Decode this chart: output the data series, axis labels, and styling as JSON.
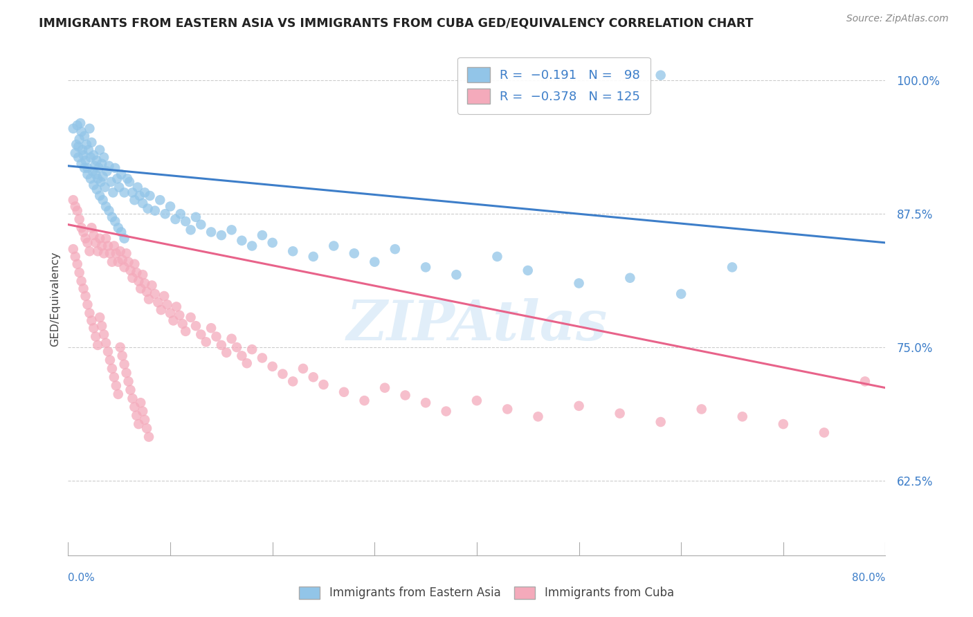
{
  "title": "IMMIGRANTS FROM EASTERN ASIA VS IMMIGRANTS FROM CUBA GED/EQUIVALENCY CORRELATION CHART",
  "source": "Source: ZipAtlas.com",
  "ylabel": "GED/Equivalency",
  "yticks_labels": [
    "62.5%",
    "75.0%",
    "87.5%",
    "100.0%"
  ],
  "ytick_vals": [
    0.625,
    0.75,
    0.875,
    1.0
  ],
  "xticks_labels": [
    "0.0%",
    "80.0%"
  ],
  "xlim": [
    0.0,
    0.8
  ],
  "ylim": [
    0.555,
    1.035
  ],
  "blue_color": "#92C5E8",
  "pink_color": "#F4AABB",
  "blue_line_color": "#3D7EC9",
  "pink_line_color": "#E8638A",
  "blue_trend_x0": 0.0,
  "blue_trend_y0": 0.92,
  "blue_trend_x1": 0.8,
  "blue_trend_y1": 0.848,
  "pink_trend_x0": 0.0,
  "pink_trend_y0": 0.865,
  "pink_trend_x1": 0.8,
  "pink_trend_y1": 0.712,
  "blue_x": [
    0.005,
    0.008,
    0.009,
    0.01,
    0.011,
    0.012,
    0.013,
    0.014,
    0.015,
    0.016,
    0.017,
    0.018,
    0.019,
    0.02,
    0.021,
    0.022,
    0.023,
    0.024,
    0.025,
    0.026,
    0.027,
    0.028,
    0.029,
    0.03,
    0.031,
    0.032,
    0.033,
    0.034,
    0.035,
    0.036,
    0.038,
    0.04,
    0.042,
    0.044,
    0.046,
    0.048,
    0.05,
    0.052,
    0.055,
    0.058,
    0.06,
    0.063,
    0.065,
    0.068,
    0.07,
    0.073,
    0.075,
    0.078,
    0.08,
    0.085,
    0.09,
    0.095,
    0.1,
    0.105,
    0.11,
    0.115,
    0.12,
    0.125,
    0.13,
    0.14,
    0.15,
    0.16,
    0.17,
    0.18,
    0.19,
    0.2,
    0.22,
    0.24,
    0.26,
    0.28,
    0.3,
    0.32,
    0.35,
    0.38,
    0.42,
    0.45,
    0.5,
    0.55,
    0.6,
    0.65,
    0.007,
    0.01,
    0.013,
    0.016,
    0.019,
    0.022,
    0.025,
    0.028,
    0.031,
    0.034,
    0.037,
    0.04,
    0.043,
    0.046,
    0.049,
    0.052,
    0.055,
    0.58
  ],
  "blue_y": [
    0.955,
    0.94,
    0.958,
    0.938,
    0.945,
    0.96,
    0.952,
    0.935,
    0.93,
    0.948,
    0.925,
    0.94,
    0.918,
    0.935,
    0.955,
    0.928,
    0.942,
    0.915,
    0.93,
    0.92,
    0.912,
    0.925,
    0.908,
    0.918,
    0.935,
    0.905,
    0.922,
    0.91,
    0.928,
    0.9,
    0.915,
    0.92,
    0.905,
    0.895,
    0.918,
    0.908,
    0.9,
    0.912,
    0.895,
    0.908,
    0.905,
    0.895,
    0.888,
    0.9,
    0.892,
    0.885,
    0.895,
    0.88,
    0.892,
    0.878,
    0.888,
    0.875,
    0.882,
    0.87,
    0.875,
    0.868,
    0.86,
    0.872,
    0.865,
    0.858,
    0.855,
    0.86,
    0.85,
    0.845,
    0.855,
    0.848,
    0.84,
    0.835,
    0.845,
    0.838,
    0.83,
    0.842,
    0.825,
    0.818,
    0.835,
    0.822,
    0.81,
    0.815,
    0.8,
    0.825,
    0.932,
    0.928,
    0.922,
    0.918,
    0.912,
    0.908,
    0.902,
    0.898,
    0.892,
    0.888,
    0.882,
    0.878,
    0.872,
    0.868,
    0.862,
    0.858,
    0.852,
    1.005
  ],
  "pink_x": [
    0.005,
    0.007,
    0.009,
    0.011,
    0.013,
    0.015,
    0.017,
    0.019,
    0.021,
    0.023,
    0.025,
    0.027,
    0.029,
    0.031,
    0.033,
    0.035,
    0.037,
    0.039,
    0.041,
    0.043,
    0.045,
    0.047,
    0.049,
    0.051,
    0.053,
    0.055,
    0.057,
    0.059,
    0.061,
    0.063,
    0.065,
    0.067,
    0.069,
    0.071,
    0.073,
    0.075,
    0.077,
    0.079,
    0.082,
    0.085,
    0.088,
    0.091,
    0.094,
    0.097,
    0.1,
    0.103,
    0.106,
    0.109,
    0.112,
    0.115,
    0.12,
    0.125,
    0.13,
    0.135,
    0.14,
    0.145,
    0.15,
    0.155,
    0.16,
    0.165,
    0.17,
    0.175,
    0.18,
    0.19,
    0.2,
    0.21,
    0.22,
    0.23,
    0.24,
    0.25,
    0.27,
    0.29,
    0.31,
    0.33,
    0.35,
    0.37,
    0.4,
    0.43,
    0.46,
    0.5,
    0.54,
    0.58,
    0.62,
    0.66,
    0.7,
    0.74,
    0.78,
    0.005,
    0.007,
    0.009,
    0.011,
    0.013,
    0.015,
    0.017,
    0.019,
    0.021,
    0.023,
    0.025,
    0.027,
    0.029,
    0.031,
    0.033,
    0.035,
    0.037,
    0.039,
    0.041,
    0.043,
    0.045,
    0.047,
    0.049,
    0.051,
    0.053,
    0.055,
    0.057,
    0.059,
    0.061,
    0.063,
    0.065,
    0.067,
    0.069,
    0.071,
    0.073,
    0.075,
    0.077,
    0.079
  ],
  "pink_y": [
    0.888,
    0.882,
    0.878,
    0.87,
    0.862,
    0.858,
    0.852,
    0.848,
    0.84,
    0.862,
    0.855,
    0.848,
    0.84,
    0.852,
    0.845,
    0.838,
    0.852,
    0.845,
    0.838,
    0.83,
    0.845,
    0.838,
    0.83,
    0.84,
    0.832,
    0.825,
    0.838,
    0.83,
    0.822,
    0.815,
    0.828,
    0.82,
    0.812,
    0.805,
    0.818,
    0.81,
    0.802,
    0.795,
    0.808,
    0.8,
    0.792,
    0.785,
    0.798,
    0.79,
    0.782,
    0.775,
    0.788,
    0.78,
    0.772,
    0.765,
    0.778,
    0.77,
    0.762,
    0.755,
    0.768,
    0.76,
    0.752,
    0.745,
    0.758,
    0.75,
    0.742,
    0.735,
    0.748,
    0.74,
    0.732,
    0.725,
    0.718,
    0.73,
    0.722,
    0.715,
    0.708,
    0.7,
    0.712,
    0.705,
    0.698,
    0.69,
    0.7,
    0.692,
    0.685,
    0.695,
    0.688,
    0.68,
    0.692,
    0.685,
    0.678,
    0.67,
    0.718,
    0.842,
    0.835,
    0.828,
    0.82,
    0.812,
    0.805,
    0.798,
    0.79,
    0.782,
    0.775,
    0.768,
    0.76,
    0.752,
    0.778,
    0.77,
    0.762,
    0.754,
    0.746,
    0.738,
    0.73,
    0.722,
    0.714,
    0.706,
    0.75,
    0.742,
    0.734,
    0.726,
    0.718,
    0.71,
    0.702,
    0.694,
    0.686,
    0.678,
    0.698,
    0.69,
    0.682,
    0.674,
    0.666
  ]
}
